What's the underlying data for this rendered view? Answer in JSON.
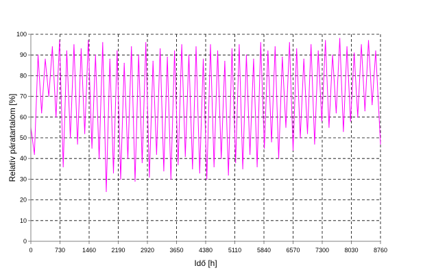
{
  "chart_data": {
    "type": "line",
    "title": "",
    "xlabel": "Idő [h]",
    "ylabel": "Relatív páratartalom [%]",
    "xlim": [
      0,
      8760
    ],
    "ylim": [
      0,
      100
    ],
    "x_ticks": [
      0,
      730,
      1460,
      2190,
      2920,
      3650,
      4380,
      5110,
      5840,
      6570,
      7300,
      8030,
      8760
    ],
    "y_ticks": [
      0,
      10,
      20,
      30,
      40,
      50,
      60,
      70,
      80,
      90,
      100
    ],
    "grid": true,
    "legend": "none",
    "series": [
      {
        "color": "#ff00ff",
        "x": [
          0,
          90,
          180,
          270,
          360,
          450,
          540,
          630,
          720,
          810,
          900,
          990,
          1080,
          1170,
          1260,
          1350,
          1440,
          1530,
          1620,
          1710,
          1800,
          1890,
          1980,
          2070,
          2160,
          2250,
          2340,
          2430,
          2520,
          2610,
          2700,
          2790,
          2880,
          2970,
          3060,
          3150,
          3240,
          3330,
          3420,
          3510,
          3600,
          3690,
          3780,
          3870,
          3960,
          4050,
          4140,
          4230,
          4320,
          4410,
          4500,
          4590,
          4680,
          4770,
          4860,
          4950,
          5040,
          5130,
          5220,
          5310,
          5400,
          5490,
          5580,
          5670,
          5760,
          5850,
          5940,
          6030,
          6120,
          6210,
          6300,
          6390,
          6480,
          6570,
          6660,
          6750,
          6840,
          6930,
          7020,
          7110,
          7200,
          7290,
          7380,
          7470,
          7560,
          7650,
          7740,
          7830,
          7920,
          8010,
          8100,
          8190,
          8280,
          8370,
          8460,
          8550,
          8640,
          8760
        ],
        "y": [
          55,
          42,
          90,
          62,
          88,
          70,
          94,
          60,
          97,
          36,
          92,
          50,
          95,
          47,
          93,
          52,
          97,
          45,
          90,
          40,
          96,
          24,
          88,
          33,
          92,
          30,
          86,
          40,
          94,
          29,
          90,
          38,
          96,
          31,
          87,
          42,
          93,
          34,
          89,
          30,
          92,
          37,
          95,
          41,
          90,
          35,
          94,
          33,
          88,
          30,
          95,
          36,
          92,
          40,
          87,
          32,
          93,
          38,
          95,
          35,
          90,
          42,
          88,
          36,
          96,
          45,
          92,
          48,
          94,
          40,
          89,
          55,
          96,
          44,
          93,
          50,
          88,
          52,
          95,
          47,
          92,
          58,
          97,
          55,
          90,
          62,
          98,
          53,
          94,
          58,
          91,
          60,
          95,
          63,
          97,
          66,
          92,
          47
        ]
      }
    ]
  }
}
